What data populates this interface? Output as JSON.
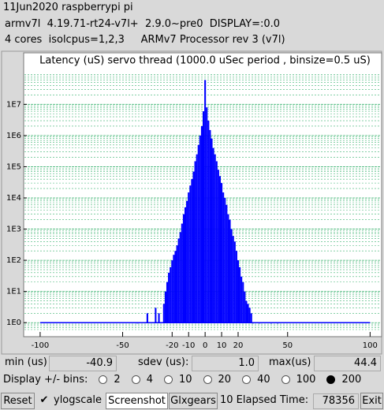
{
  "header": {
    "lines": [
      "11Jun2020 raspberrypi pi",
      "armv7l  4.19.71-rt24-v7l+  2.9.0~pre0  DISPLAY=:0.0",
      "4 cores  isolcpus=1,2,3     ARMv7 Processor rev 3 (v7l)"
    ]
  },
  "chart_data": {
    "type": "bar",
    "title": "Latency (uS) servo thread (1000.0 uSec period , binsize=0.5 uS)",
    "x": [
      -41,
      -35,
      -30,
      -28,
      -25,
      -24,
      -23,
      -22,
      -21,
      -20,
      -19,
      -18,
      -17,
      -16,
      -15,
      -14,
      -13,
      -12,
      -11,
      -10,
      -9,
      -8,
      -7,
      -6,
      -5,
      -4,
      -3,
      -2,
      -1,
      0,
      1,
      2,
      3,
      4,
      5,
      6,
      7,
      8,
      9,
      10,
      11,
      12,
      13,
      14,
      15,
      16,
      17,
      18,
      19,
      20,
      21,
      22,
      23,
      24,
      25,
      26,
      27,
      28,
      29,
      33,
      40,
      44
    ],
    "values": [
      1,
      2,
      3,
      2,
      4,
      10,
      20,
      40,
      60,
      100,
      150,
      200,
      300,
      500,
      800,
      1500,
      3000,
      5000,
      8000,
      15000,
      25000,
      40000,
      70000,
      150000,
      250000,
      500000,
      1000000,
      2000000,
      6000000,
      60000000,
      8000000,
      3000000,
      1500000,
      800000,
      400000,
      250000,
      150000,
      80000,
      50000,
      30000,
      15000,
      10000,
      6000,
      3000,
      2000,
      1000,
      600,
      400,
      200,
      100,
      60,
      30,
      20,
      10,
      5,
      4,
      3,
      2,
      1,
      1,
      1,
      1
    ],
    "color": "#0000ff",
    "log_scale": true,
    "grid": true,
    "grid_color": "#3cb371",
    "xlim": [
      -110,
      107
    ],
    "xticks": [
      -100,
      -50,
      -20,
      -10,
      0,
      10,
      20,
      50,
      100
    ],
    "ylim": [
      0.6,
      140000000
    ],
    "yticks": [
      {
        "value": 1,
        "label": "1E0"
      },
      {
        "value": 10,
        "label": "1E1"
      },
      {
        "value": 100,
        "label": "1E2"
      },
      {
        "value": 1000,
        "label": "1E3"
      },
      {
        "value": 10000,
        "label": "1E4"
      },
      {
        "value": 100000,
        "label": "1E5"
      },
      {
        "value": 1000000,
        "label": "1E6"
      },
      {
        "value": 10000000,
        "label": "1E7"
      }
    ]
  },
  "stats": {
    "min_label": "min (us)",
    "min": "-40.9",
    "sdev_label": "sdev (us):",
    "sdev": "1.0",
    "max_label": "max(us)",
    "max": "44.4"
  },
  "bins_control": {
    "label": "Display +/- bins:",
    "options": [
      "2",
      "4",
      "10",
      "20",
      "40",
      "100",
      "200"
    ],
    "selected": 6
  },
  "toolbar": {
    "reset": "Reset",
    "ylogscale": "ylogscale",
    "ylogscale_checked": true,
    "screenshot": "Screenshot",
    "glxgears": "Glxgears",
    "elapsed_label": "10 Elapsed Time:",
    "elapsed": "78356",
    "exit": "Exit"
  }
}
